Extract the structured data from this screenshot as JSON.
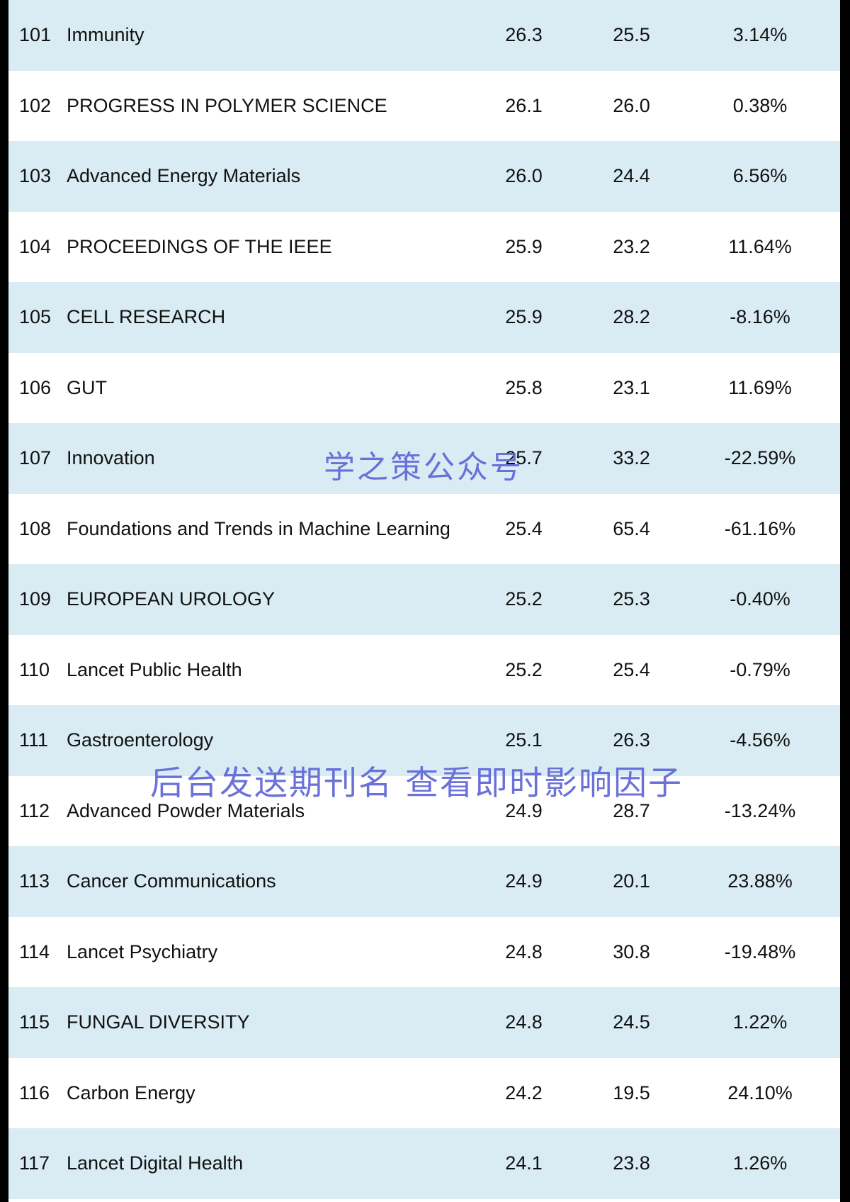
{
  "rows": [
    {
      "rank": "101",
      "name": "Immunity",
      "value_1": "26.3",
      "value_2": "25.5",
      "change": "3.14%",
      "shaded": true
    },
    {
      "rank": "102",
      "name": "PROGRESS IN POLYMER SCIENCE",
      "value_1": "26.1",
      "value_2": "26.0",
      "change": "0.38%",
      "shaded": false
    },
    {
      "rank": "103",
      "name": "Advanced Energy Materials",
      "value_1": "26.0",
      "value_2": "24.4",
      "change": "6.56%",
      "shaded": true
    },
    {
      "rank": "104",
      "name": "PROCEEDINGS OF THE IEEE",
      "value_1": "25.9",
      "value_2": "23.2",
      "change": "11.64%",
      "shaded": false
    },
    {
      "rank": "105",
      "name": "CELL RESEARCH",
      "value_1": "25.9",
      "value_2": "28.2",
      "change": "-8.16%",
      "shaded": true
    },
    {
      "rank": "106",
      "name": "GUT",
      "value_1": "25.8",
      "value_2": "23.1",
      "change": "11.69%",
      "shaded": false
    },
    {
      "rank": "107",
      "name": "Innovation",
      "value_1": "25.7",
      "value_2": "33.2",
      "change": "-22.59%",
      "shaded": true
    },
    {
      "rank": "108",
      "name": "Foundations and Trends in Machine Learning",
      "value_1": "25.4",
      "value_2": "65.4",
      "change": "-61.16%",
      "shaded": false
    },
    {
      "rank": "109",
      "name": "EUROPEAN UROLOGY",
      "value_1": "25.2",
      "value_2": "25.3",
      "change": "-0.40%",
      "shaded": true
    },
    {
      "rank": "110",
      "name": "Lancet Public Health",
      "value_1": "25.2",
      "value_2": "25.4",
      "change": "-0.79%",
      "shaded": false
    },
    {
      "rank": "111",
      "name": "Gastroenterology",
      "value_1": "25.1",
      "value_2": "26.3",
      "change": "-4.56%",
      "shaded": true
    },
    {
      "rank": "112",
      "name": "Advanced Powder Materials",
      "value_1": "24.9",
      "value_2": "28.7",
      "change": "-13.24%",
      "shaded": false
    },
    {
      "rank": "113",
      "name": "Cancer Communications",
      "value_1": "24.9",
      "value_2": "20.1",
      "change": "23.88%",
      "shaded": true
    },
    {
      "rank": "114",
      "name": "Lancet Psychiatry",
      "value_1": "24.8",
      "value_2": "30.8",
      "change": "-19.48%",
      "shaded": false
    },
    {
      "rank": "115",
      "name": "FUNGAL DIVERSITY",
      "value_1": "24.8",
      "value_2": "24.5",
      "change": "1.22%",
      "shaded": true
    },
    {
      "rank": "116",
      "name": "Carbon Energy",
      "value_1": "24.2",
      "value_2": "19.5",
      "change": "24.10%",
      "shaded": false
    },
    {
      "rank": "117",
      "name": "Lancet Digital Health",
      "value_1": "24.1",
      "value_2": "23.8",
      "change": "1.26%",
      "shaded": true
    }
  ],
  "watermarks": {
    "account": "学之策公众号",
    "hint": "后台发送期刊名 查看即时影响因子"
  },
  "colors": {
    "row_shaded": "#d9ebf3",
    "row_plain": "#ffffff",
    "text": "#111111",
    "watermark": "#5e67d6",
    "frame": "#000000"
  }
}
